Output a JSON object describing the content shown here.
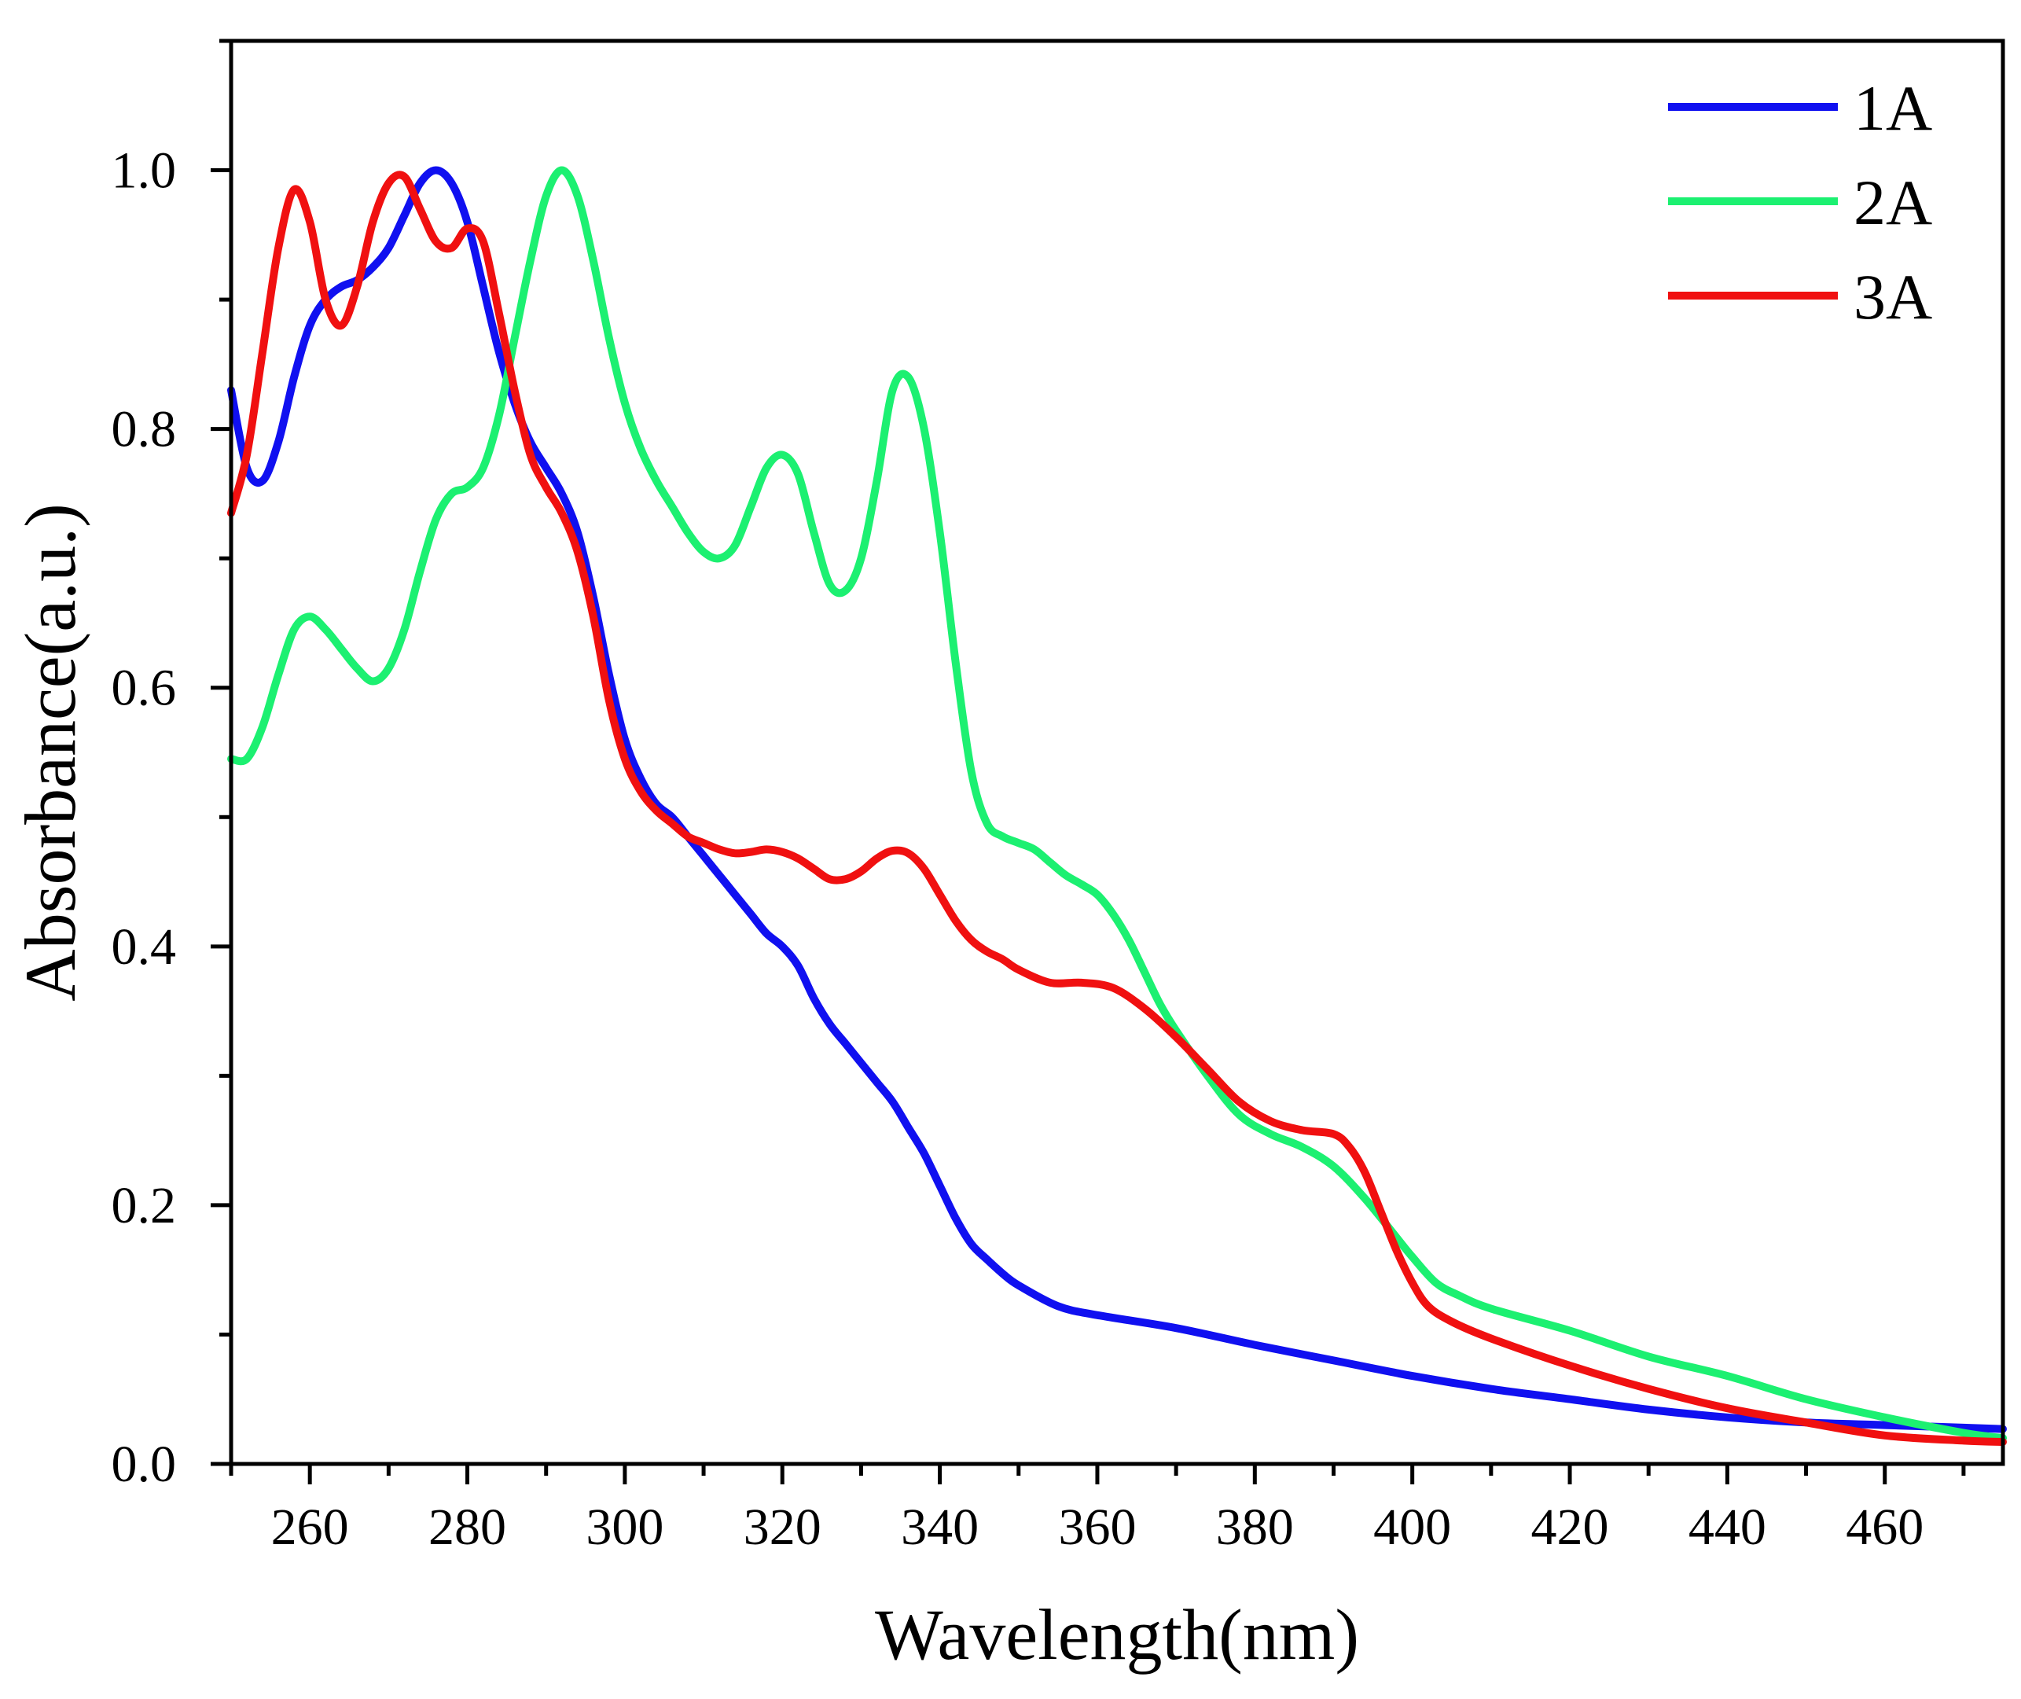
{
  "chart_data": {
    "type": "line",
    "title": "",
    "xlabel": "Wavelength(nm)",
    "ylabel": "Absorbance(a.u.)",
    "xlim": [
      250,
      475
    ],
    "ylim": [
      0.0,
      1.1
    ],
    "grid": false,
    "legend_position": "top-right",
    "x_ticks": [
      260,
      280,
      300,
      320,
      340,
      360,
      380,
      400,
      420,
      440,
      460
    ],
    "x_tick_labels": [
      "260",
      "280",
      "300",
      "320",
      "340",
      "360",
      "380",
      "400",
      "420",
      "440",
      "460"
    ],
    "y_ticks": [
      0.0,
      0.2,
      0.4,
      0.6,
      0.8,
      1.0
    ],
    "y_tick_labels": [
      "0.0",
      "0.2",
      "0.4",
      "0.6",
      "0.8",
      "1.0"
    ],
    "series": [
      {
        "name": "1A",
        "color": "#1010f0",
        "points": [
          [
            250,
            0.83
          ],
          [
            252,
            0.77
          ],
          [
            254,
            0.76
          ],
          [
            256,
            0.79
          ],
          [
            258,
            0.84
          ],
          [
            260,
            0.88
          ],
          [
            262,
            0.9
          ],
          [
            264,
            0.91
          ],
          [
            266,
            0.915
          ],
          [
            268,
            0.925
          ],
          [
            270,
            0.94
          ],
          [
            272,
            0.965
          ],
          [
            274,
            0.99
          ],
          [
            276,
            1.0
          ],
          [
            278,
            0.99
          ],
          [
            280,
            0.96
          ],
          [
            282,
            0.91
          ],
          [
            284,
            0.86
          ],
          [
            286,
            0.82
          ],
          [
            288,
            0.79
          ],
          [
            290,
            0.77
          ],
          [
            292,
            0.75
          ],
          [
            294,
            0.72
          ],
          [
            296,
            0.67
          ],
          [
            298,
            0.61
          ],
          [
            300,
            0.56
          ],
          [
            302,
            0.53
          ],
          [
            304,
            0.51
          ],
          [
            306,
            0.5
          ],
          [
            308,
            0.485
          ],
          [
            310,
            0.47
          ],
          [
            312,
            0.455
          ],
          [
            314,
            0.44
          ],
          [
            316,
            0.425
          ],
          [
            318,
            0.41
          ],
          [
            320,
            0.4
          ],
          [
            322,
            0.385
          ],
          [
            324,
            0.36
          ],
          [
            326,
            0.34
          ],
          [
            328,
            0.325
          ],
          [
            330,
            0.31
          ],
          [
            332,
            0.295
          ],
          [
            334,
            0.28
          ],
          [
            336,
            0.26
          ],
          [
            338,
            0.24
          ],
          [
            340,
            0.215
          ],
          [
            342,
            0.19
          ],
          [
            344,
            0.17
          ],
          [
            346,
            0.158
          ],
          [
            348,
            0.147
          ],
          [
            350,
            0.138
          ],
          [
            355,
            0.122
          ],
          [
            360,
            0.115
          ],
          [
            370,
            0.105
          ],
          [
            380,
            0.092
          ],
          [
            390,
            0.08
          ],
          [
            400,
            0.068
          ],
          [
            410,
            0.058
          ],
          [
            420,
            0.05
          ],
          [
            430,
            0.042
          ],
          [
            440,
            0.036
          ],
          [
            450,
            0.032
          ],
          [
            460,
            0.03
          ],
          [
            470,
            0.028
          ],
          [
            475,
            0.027
          ]
        ]
      },
      {
        "name": "2A",
        "color": "#1cf071",
        "points": [
          [
            250,
            0.545
          ],
          [
            252,
            0.545
          ],
          [
            254,
            0.57
          ],
          [
            256,
            0.61
          ],
          [
            258,
            0.645
          ],
          [
            260,
            0.655
          ],
          [
            262,
            0.645
          ],
          [
            264,
            0.63
          ],
          [
            266,
            0.615
          ],
          [
            268,
            0.605
          ],
          [
            270,
            0.615
          ],
          [
            272,
            0.645
          ],
          [
            274,
            0.69
          ],
          [
            276,
            0.73
          ],
          [
            278,
            0.75
          ],
          [
            280,
            0.755
          ],
          [
            282,
            0.77
          ],
          [
            284,
            0.81
          ],
          [
            286,
            0.87
          ],
          [
            288,
            0.93
          ],
          [
            290,
            0.98
          ],
          [
            292,
            1.0
          ],
          [
            294,
            0.98
          ],
          [
            296,
            0.93
          ],
          [
            298,
            0.87
          ],
          [
            300,
            0.82
          ],
          [
            302,
            0.785
          ],
          [
            304,
            0.76
          ],
          [
            306,
            0.74
          ],
          [
            308,
            0.72
          ],
          [
            310,
            0.705
          ],
          [
            312,
            0.7
          ],
          [
            314,
            0.71
          ],
          [
            316,
            0.74
          ],
          [
            318,
            0.77
          ],
          [
            320,
            0.78
          ],
          [
            322,
            0.765
          ],
          [
            324,
            0.72
          ],
          [
            326,
            0.68
          ],
          [
            328,
            0.675
          ],
          [
            330,
            0.7
          ],
          [
            332,
            0.76
          ],
          [
            334,
            0.83
          ],
          [
            336,
            0.84
          ],
          [
            338,
            0.8
          ],
          [
            340,
            0.72
          ],
          [
            342,
            0.62
          ],
          [
            344,
            0.535
          ],
          [
            346,
            0.495
          ],
          [
            348,
            0.485
          ],
          [
            350,
            0.48
          ],
          [
            352,
            0.475
          ],
          [
            354,
            0.465
          ],
          [
            356,
            0.455
          ],
          [
            358,
            0.448
          ],
          [
            360,
            0.44
          ],
          [
            362,
            0.425
          ],
          [
            364,
            0.405
          ],
          [
            366,
            0.38
          ],
          [
            368,
            0.355
          ],
          [
            370,
            0.335
          ],
          [
            374,
            0.3
          ],
          [
            378,
            0.27
          ],
          [
            382,
            0.255
          ],
          [
            386,
            0.245
          ],
          [
            390,
            0.23
          ],
          [
            394,
            0.205
          ],
          [
            398,
            0.175
          ],
          [
            400,
            0.16
          ],
          [
            403,
            0.14
          ],
          [
            406,
            0.13
          ],
          [
            410,
            0.12
          ],
          [
            420,
            0.103
          ],
          [
            430,
            0.083
          ],
          [
            440,
            0.068
          ],
          [
            450,
            0.05
          ],
          [
            460,
            0.036
          ],
          [
            470,
            0.024
          ],
          [
            475,
            0.02
          ]
        ]
      },
      {
        "name": "3A",
        "color": "#f01010",
        "points": [
          [
            250,
            0.735
          ],
          [
            252,
            0.78
          ],
          [
            254,
            0.86
          ],
          [
            256,
            0.94
          ],
          [
            258,
            0.985
          ],
          [
            260,
            0.96
          ],
          [
            262,
            0.9
          ],
          [
            264,
            0.88
          ],
          [
            266,
            0.91
          ],
          [
            268,
            0.96
          ],
          [
            270,
            0.99
          ],
          [
            272,
            0.995
          ],
          [
            274,
            0.97
          ],
          [
            276,
            0.945
          ],
          [
            278,
            0.94
          ],
          [
            280,
            0.955
          ],
          [
            282,
            0.945
          ],
          [
            284,
            0.89
          ],
          [
            286,
            0.83
          ],
          [
            288,
            0.78
          ],
          [
            290,
            0.755
          ],
          [
            292,
            0.735
          ],
          [
            294,
            0.705
          ],
          [
            296,
            0.655
          ],
          [
            298,
            0.59
          ],
          [
            300,
            0.545
          ],
          [
            302,
            0.52
          ],
          [
            304,
            0.505
          ],
          [
            306,
            0.495
          ],
          [
            308,
            0.485
          ],
          [
            310,
            0.48
          ],
          [
            312,
            0.475
          ],
          [
            314,
            0.472
          ],
          [
            316,
            0.473
          ],
          [
            318,
            0.475
          ],
          [
            320,
            0.473
          ],
          [
            322,
            0.468
          ],
          [
            324,
            0.46
          ],
          [
            326,
            0.452
          ],
          [
            328,
            0.452
          ],
          [
            330,
            0.458
          ],
          [
            332,
            0.468
          ],
          [
            334,
            0.474
          ],
          [
            336,
            0.472
          ],
          [
            338,
            0.46
          ],
          [
            340,
            0.44
          ],
          [
            342,
            0.42
          ],
          [
            344,
            0.405
          ],
          [
            346,
            0.396
          ],
          [
            348,
            0.39
          ],
          [
            350,
            0.382
          ],
          [
            354,
            0.372
          ],
          [
            358,
            0.372
          ],
          [
            362,
            0.368
          ],
          [
            366,
            0.352
          ],
          [
            370,
            0.33
          ],
          [
            374,
            0.305
          ],
          [
            378,
            0.28
          ],
          [
            382,
            0.265
          ],
          [
            386,
            0.258
          ],
          [
            390,
            0.255
          ],
          [
            392,
            0.245
          ],
          [
            394,
            0.225
          ],
          [
            396,
            0.195
          ],
          [
            398,
            0.165
          ],
          [
            400,
            0.14
          ],
          [
            402,
            0.122
          ],
          [
            405,
            0.11
          ],
          [
            410,
            0.097
          ],
          [
            420,
            0.076
          ],
          [
            430,
            0.058
          ],
          [
            440,
            0.043
          ],
          [
            450,
            0.032
          ],
          [
            460,
            0.022
          ],
          [
            470,
            0.018
          ],
          [
            475,
            0.017
          ]
        ]
      }
    ]
  }
}
